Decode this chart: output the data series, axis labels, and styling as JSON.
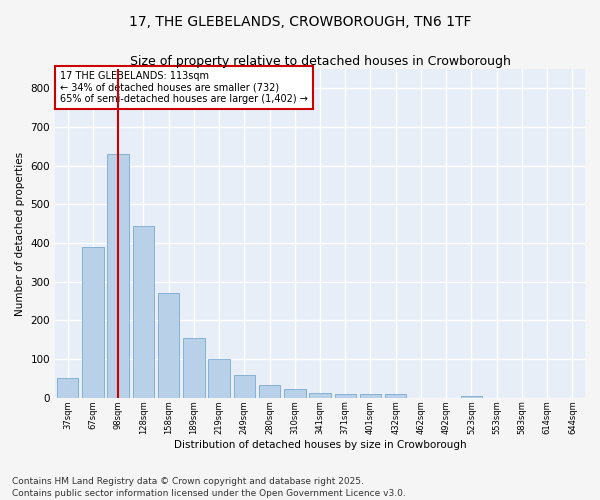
{
  "title": "17, THE GLEBELANDS, CROWBOROUGH, TN6 1TF",
  "subtitle": "Size of property relative to detached houses in Crowborough",
  "xlabel": "Distribution of detached houses by size in Crowborough",
  "ylabel": "Number of detached properties",
  "bar_values": [
    50,
    390,
    630,
    445,
    270,
    155,
    100,
    58,
    32,
    22,
    12,
    10,
    10,
    10,
    0,
    0,
    5,
    0,
    0,
    0,
    0
  ],
  "bar_labels": [
    "37sqm",
    "67sqm",
    "98sqm",
    "128sqm",
    "158sqm",
    "189sqm",
    "219sqm",
    "249sqm",
    "280sqm",
    "310sqm",
    "341sqm",
    "371sqm",
    "401sqm",
    "432sqm",
    "462sqm",
    "492sqm",
    "523sqm",
    "553sqm",
    "583sqm",
    "614sqm",
    "644sqm"
  ],
  "bar_color": "#b8d0e8",
  "bar_edge_color": "#6a9fc8",
  "vline_x": 2,
  "vline_color": "#cc0000",
  "annotation_text": "17 THE GLEBELANDS: 113sqm\n← 34% of detached houses are smaller (732)\n65% of semi-detached houses are larger (1,402) →",
  "annotation_box_facecolor": "#ffffff",
  "annotation_box_edgecolor": "#cc0000",
  "ylim": [
    0,
    850
  ],
  "yticks": [
    0,
    100,
    200,
    300,
    400,
    500,
    600,
    700,
    800
  ],
  "background_color": "#e8eef8",
  "grid_color": "#ffffff",
  "fig_facecolor": "#f5f5f5",
  "title_fontsize": 10,
  "subtitle_fontsize": 9,
  "footer": "Contains HM Land Registry data © Crown copyright and database right 2025.\nContains public sector information licensed under the Open Government Licence v3.0.",
  "footer_fontsize": 6.5
}
